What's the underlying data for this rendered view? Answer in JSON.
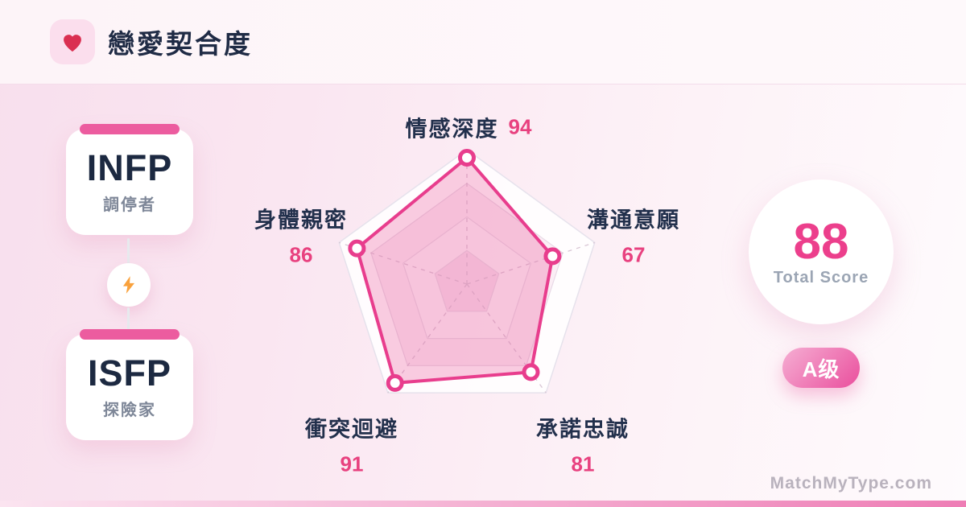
{
  "header": {
    "title": "戀愛契合度",
    "icon": "heart-icon"
  },
  "pair": {
    "top": {
      "type": "INFP",
      "nickname": "調停者"
    },
    "bottom": {
      "type": "ISFP",
      "nickname": "探險家"
    },
    "divider_icon": "lightning-bolt"
  },
  "chart_data": {
    "type": "radar",
    "categories": [
      "情感深度",
      "溝通意願",
      "承諾忠誠",
      "衝突迴避",
      "身體親密"
    ],
    "values": [
      94,
      67,
      81,
      91,
      86
    ],
    "max": 100,
    "grid_levels": [
      25,
      50,
      75,
      100
    ],
    "grid_shape": "pentagon",
    "spokes": "dashed",
    "legend_position": "none",
    "accent": "#e83d8d"
  },
  "score": {
    "value": "88",
    "label": "Total Score",
    "grade": "A级"
  },
  "footer": {
    "watermark": "MatchMyType.com"
  },
  "colors": {
    "accent_pink": "#e83d8d",
    "badge_gradient_start": "#f5aed3",
    "badge_gradient_end": "#ea4f9d",
    "heart_red": "#da2f51",
    "bolt_orange": "#f9a13c",
    "text_dark": "#1f2b45",
    "text_gray": "#7e8798",
    "background_pink": "#fae6f1"
  }
}
